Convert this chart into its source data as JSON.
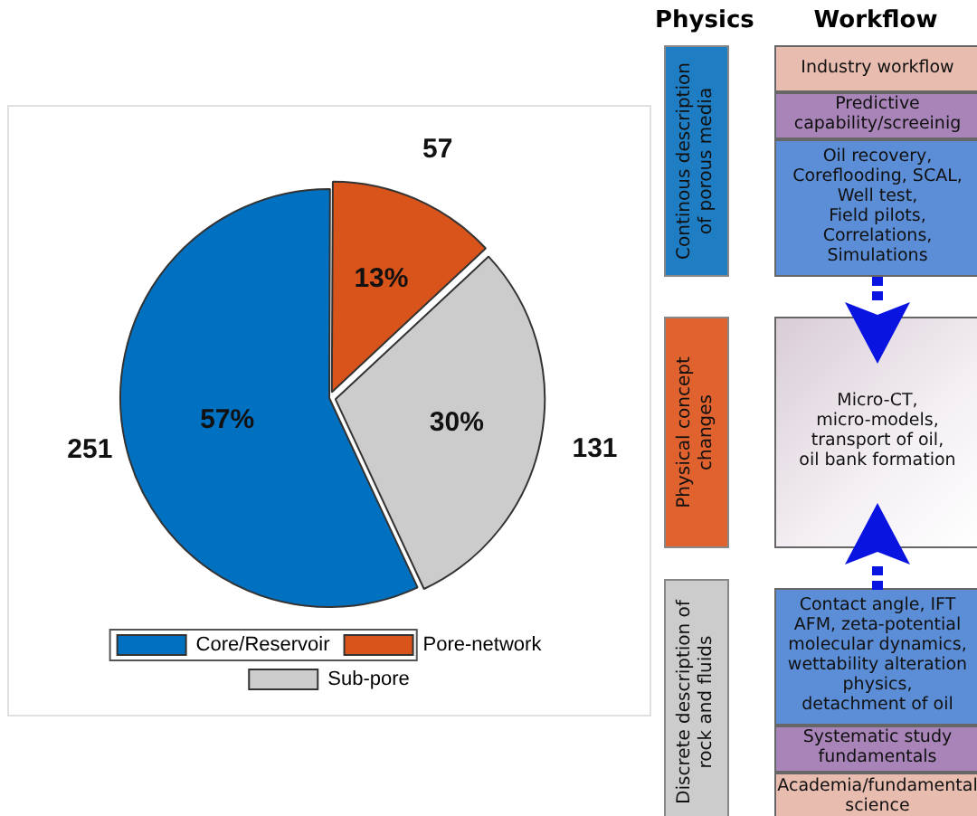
{
  "chart_data": [
    {
      "type": "pie",
      "categories": [
        "Core/Reservoir",
        "Pore-network",
        "Sub-pore"
      ],
      "values": [
        57,
        13,
        30
      ],
      "colors": [
        "#0070c0",
        "#d9541a",
        "#cccccc"
      ],
      "value_labels": [
        "57%",
        "13%",
        "30%"
      ],
      "annotations": [
        {
          "text": "251",
          "x": "Core/Reservoir"
        },
        {
          "text": "57",
          "x": "Pore-network"
        },
        {
          "text": "131",
          "x": "Sub-pore"
        }
      ],
      "legend": "bottom"
    },
    {
      "type": "other",
      "annotations": [
        "Physics",
        "Workflow",
        "Continous description\nof porous media",
        "Physical concept\nchanges",
        "Discrete description of\nrock and fluids",
        "Industry workflow",
        "Predictive\ncapability/screeinig",
        "Oil recovery,\nCoreflooding, SCAL,\nWell test,\nField pilots,\nCorrelations,\nSimulations",
        "Micro-CT,\nmicro-models,\ntransport of oil,\noil bank formation",
        "Contact angle, IFT\nAFM, zeta-potential\nmolecular dynamics,\nwettability alteration\nphysics,\ndetachment of oil",
        "Systematic study\nfundamentals",
        "Academia/fundamental\nscience"
      ]
    }
  ]
}
